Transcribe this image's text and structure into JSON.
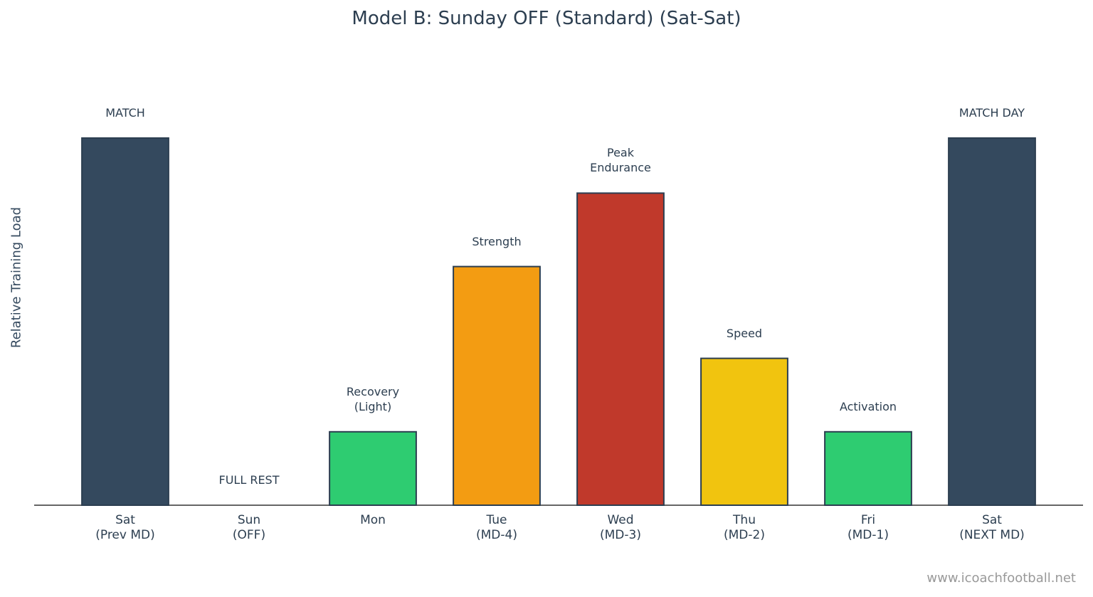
{
  "chart_data": {
    "type": "bar",
    "title": "Model B: Sunday OFF (Standard) (Sat-Sat)",
    "y_label": "Relative Training Load",
    "categories": [
      "Sat\n(Prev MD)",
      "Sun\n(OFF)",
      "Mon",
      "Tue\n(MD-4)",
      "Wed\n(MD-3)",
      "Thu\n(MD-2)",
      "Fri\n(MD-1)",
      "Sat\n(NEXT MD)"
    ],
    "values": [
      100,
      0,
      20,
      65,
      85,
      40,
      20,
      100
    ],
    "annotations": [
      "MATCH",
      "FULL REST",
      "Recovery\n(Light)",
      "Strength",
      "Peak\nEndurance",
      "Speed",
      "Activation",
      "MATCH DAY"
    ],
    "colors": [
      "#34495e",
      "#95a5a6",
      "#2ecc71",
      "#f39c12",
      "#c0392b",
      "#f1c40f",
      "#2ecc71",
      "#34495e"
    ],
    "ylim": [
      0,
      110
    ],
    "watermark": "www.icoachfootball.net"
  }
}
